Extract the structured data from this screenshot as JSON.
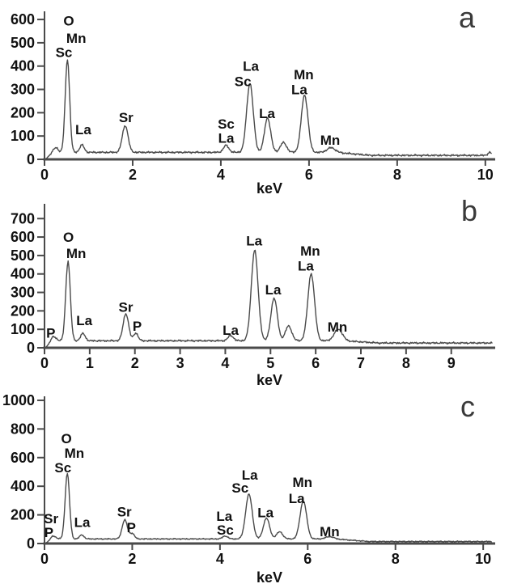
{
  "colors": {
    "background": "#ffffff",
    "trace": "#4a4a4a",
    "axis": "#4a4a4a",
    "text": "#111111",
    "panel_letter": "#3a3a3a"
  },
  "chart_data": [
    {
      "panel_label": "a",
      "type": "line",
      "xlabel": "keV",
      "x_ticks": [
        0,
        2,
        4,
        6,
        8,
        10
      ],
      "x_range": [
        0,
        10.15
      ],
      "y_ticks": [
        0,
        100,
        200,
        300,
        400,
        500,
        600
      ],
      "y_range": [
        0,
        635
      ],
      "grid": false,
      "baseline_counts": 30,
      "tail_counts": 17,
      "noise_amplitude": 5,
      "peaks": [
        {
          "element": "",
          "kev": 0.26,
          "counts": 50,
          "sigma": 0.05
        },
        {
          "element": "Sc/Mn/O",
          "kev": 0.52,
          "counts": 430,
          "sigma": 0.05
        },
        {
          "element": "La",
          "kev": 0.85,
          "counts": 62,
          "sigma": 0.05
        },
        {
          "element": "Sr",
          "kev": 1.83,
          "counts": 145,
          "sigma": 0.065
        },
        {
          "element": "Sc/La",
          "kev": 4.12,
          "counts": 60,
          "sigma": 0.06
        },
        {
          "element": "La/Sc",
          "kev": 4.66,
          "counts": 326,
          "sigma": 0.075
        },
        {
          "element": "La",
          "kev": 5.06,
          "counts": 178,
          "sigma": 0.07
        },
        {
          "element": "",
          "kev": 5.42,
          "counts": 72,
          "sigma": 0.07
        },
        {
          "element": "Mn/La",
          "kev": 5.9,
          "counts": 276,
          "sigma": 0.075
        },
        {
          "element": "Mn",
          "kev": 6.5,
          "counts": 50,
          "sigma": 0.09
        },
        {
          "element": "",
          "kev": 10.1,
          "counts": 30,
          "sigma": 0.04
        }
      ],
      "peak_annotations": [
        {
          "text": "O",
          "kev": 0.55,
          "counts": 595
        },
        {
          "text": "Mn",
          "kev": 0.72,
          "counts": 520
        },
        {
          "text": "Sc",
          "kev": 0.44,
          "counts": 460
        },
        {
          "text": "La",
          "kev": 0.88,
          "counts": 128
        },
        {
          "text": "Sr",
          "kev": 1.85,
          "counts": 180
        },
        {
          "text": "Sc",
          "kev": 4.12,
          "counts": 152
        },
        {
          "text": "La",
          "kev": 4.12,
          "counts": 92
        },
        {
          "text": "La",
          "kev": 4.68,
          "counts": 400
        },
        {
          "text": "Sc",
          "kev": 4.5,
          "counts": 335
        },
        {
          "text": "La",
          "kev": 5.05,
          "counts": 198
        },
        {
          "text": "Mn",
          "kev": 5.88,
          "counts": 364
        },
        {
          "text": "La",
          "kev": 5.78,
          "counts": 300
        },
        {
          "text": "Mn",
          "kev": 6.48,
          "counts": 83
        }
      ]
    },
    {
      "panel_label": "b",
      "type": "line",
      "xlabel": "keV",
      "x_ticks": [
        0,
        1,
        2,
        3,
        4,
        5,
        6,
        7,
        8,
        9
      ],
      "x_range": [
        0,
        9.9
      ],
      "y_ticks": [
        0,
        100,
        200,
        300,
        400,
        500,
        600,
        700
      ],
      "y_range": [
        0,
        780
      ],
      "grid": false,
      "baseline_counts": 38,
      "tail_counts": 26,
      "noise_amplitude": 6,
      "peaks": [
        {
          "element": "P",
          "kev": 0.2,
          "counts": 60,
          "sigma": 0.06
        },
        {
          "element": "Mn/O",
          "kev": 0.52,
          "counts": 470,
          "sigma": 0.05
        },
        {
          "element": "La",
          "kev": 0.85,
          "counts": 78,
          "sigma": 0.05
        },
        {
          "element": "Sr",
          "kev": 1.8,
          "counts": 185,
          "sigma": 0.06
        },
        {
          "element": "P",
          "kev": 2.02,
          "counts": 80,
          "sigma": 0.05
        },
        {
          "element": "La",
          "kev": 4.12,
          "counts": 66,
          "sigma": 0.06
        },
        {
          "element": "La",
          "kev": 4.65,
          "counts": 530,
          "sigma": 0.075
        },
        {
          "element": "La",
          "kev": 5.08,
          "counts": 270,
          "sigma": 0.07
        },
        {
          "element": "",
          "kev": 5.4,
          "counts": 118,
          "sigma": 0.07
        },
        {
          "element": "Mn/La",
          "kev": 5.9,
          "counts": 402,
          "sigma": 0.075
        },
        {
          "element": "Mn",
          "kev": 6.5,
          "counts": 100,
          "sigma": 0.09
        }
      ],
      "peak_annotations": [
        {
          "text": "P",
          "kev": 0.14,
          "counts": 80
        },
        {
          "text": "O",
          "kev": 0.53,
          "counts": 600
        },
        {
          "text": "Mn",
          "kev": 0.7,
          "counts": 512
        },
        {
          "text": "La",
          "kev": 0.88,
          "counts": 148
        },
        {
          "text": "Sr",
          "kev": 1.8,
          "counts": 222
        },
        {
          "text": "P",
          "kev": 2.05,
          "counts": 118
        },
        {
          "text": "La",
          "kev": 4.12,
          "counts": 96
        },
        {
          "text": "La",
          "kev": 4.64,
          "counts": 580
        },
        {
          "text": "La",
          "kev": 5.06,
          "counts": 315
        },
        {
          "text": "Mn",
          "kev": 5.88,
          "counts": 525
        },
        {
          "text": "La",
          "kev": 5.78,
          "counts": 445
        },
        {
          "text": "Mn",
          "kev": 6.48,
          "counts": 115
        }
      ]
    },
    {
      "panel_label": "c",
      "type": "line",
      "xlabel": "keV",
      "x_ticks": [
        0,
        2,
        4,
        6,
        8,
        10
      ],
      "x_range": [
        0,
        10.2
      ],
      "y_ticks": [
        0,
        200,
        400,
        600,
        800,
        1000
      ],
      "y_range": [
        0,
        1028
      ],
      "grid": false,
      "baseline_counts": 32,
      "tail_counts": 14,
      "noise_amplitude": 5,
      "peaks": [
        {
          "element": "Sr/P",
          "kev": 0.2,
          "counts": 52,
          "sigma": 0.06
        },
        {
          "element": "Sc/Mn/O",
          "kev": 0.52,
          "counts": 490,
          "sigma": 0.05
        },
        {
          "element": "La",
          "kev": 0.85,
          "counts": 60,
          "sigma": 0.05
        },
        {
          "element": "Sr",
          "kev": 1.83,
          "counts": 166,
          "sigma": 0.06
        },
        {
          "element": "P",
          "kev": 2.0,
          "counts": 70,
          "sigma": 0.05
        },
        {
          "element": "La/Sc",
          "kev": 4.12,
          "counts": 52,
          "sigma": 0.06
        },
        {
          "element": "La/Sc",
          "kev": 4.66,
          "counts": 345,
          "sigma": 0.075
        },
        {
          "element": "La",
          "kev": 5.06,
          "counts": 178,
          "sigma": 0.07
        },
        {
          "element": "",
          "kev": 5.36,
          "counts": 82,
          "sigma": 0.07
        },
        {
          "element": "Mn/La",
          "kev": 5.9,
          "counts": 298,
          "sigma": 0.075
        },
        {
          "element": "Mn",
          "kev": 6.5,
          "counts": 48,
          "sigma": 0.09
        }
      ],
      "peak_annotations": [
        {
          "text": "Sr",
          "kev": 0.15,
          "counts": 175
        },
        {
          "text": "P",
          "kev": 0.1,
          "counts": 80
        },
        {
          "text": "O",
          "kev": 0.5,
          "counts": 735
        },
        {
          "text": "Mn",
          "kev": 0.68,
          "counts": 633
        },
        {
          "text": "Sc",
          "kev": 0.42,
          "counts": 530
        },
        {
          "text": "La",
          "kev": 0.86,
          "counts": 150
        },
        {
          "text": "Sr",
          "kev": 1.82,
          "counts": 222
        },
        {
          "text": "P",
          "kev": 1.98,
          "counts": 113
        },
        {
          "text": "La",
          "kev": 4.1,
          "counts": 192
        },
        {
          "text": "Sc",
          "kev": 4.12,
          "counts": 96
        },
        {
          "text": "La",
          "kev": 4.68,
          "counts": 480
        },
        {
          "text": "Sc",
          "kev": 4.46,
          "counts": 390
        },
        {
          "text": "La",
          "kev": 5.04,
          "counts": 218
        },
        {
          "text": "Mn",
          "kev": 5.88,
          "counts": 430
        },
        {
          "text": "La",
          "kev": 5.75,
          "counts": 316
        },
        {
          "text": "Mn",
          "kev": 6.5,
          "counts": 85
        }
      ]
    }
  ]
}
